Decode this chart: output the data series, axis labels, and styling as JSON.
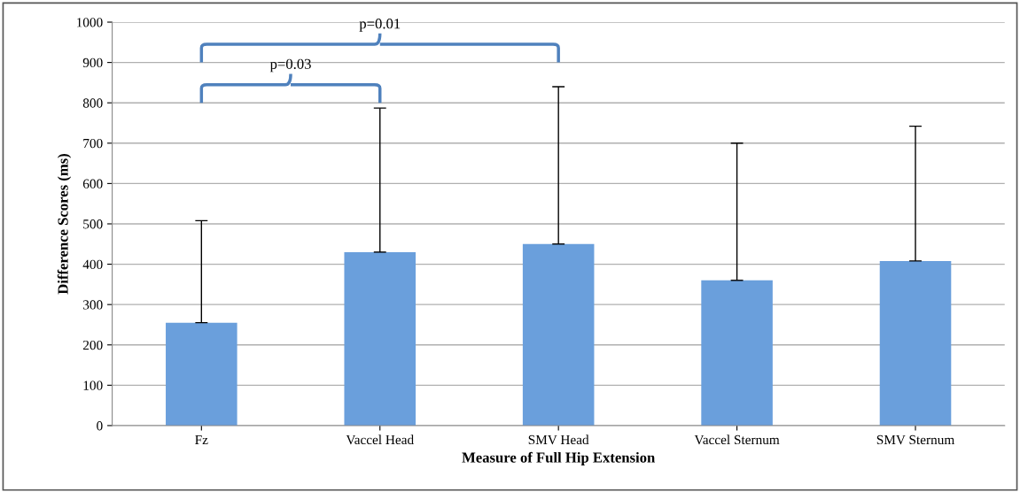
{
  "chart_data": {
    "type": "bar",
    "xlabel": "Measure of Full Hip Extension",
    "ylabel": "Difference Scores (ms)",
    "categories": [
      "Fz",
      "Vaccel Head",
      "SMV Head",
      "Vaccel Sternum",
      "SMV Sternum"
    ],
    "values": [
      255,
      430,
      450,
      360,
      408
    ],
    "errors": [
      [
        255,
        508
      ],
      [
        430,
        787
      ],
      [
        450,
        840
      ],
      [
        360,
        700
      ],
      [
        408,
        742
      ]
    ],
    "color": "#6a9fdc",
    "ylim": [
      0,
      1000
    ],
    "yticks": [
      0,
      100,
      200,
      300,
      400,
      500,
      600,
      700,
      800,
      900,
      1000
    ],
    "grid": "y",
    "annotations": [
      "p=0.03",
      "p=0.01"
    ]
  }
}
